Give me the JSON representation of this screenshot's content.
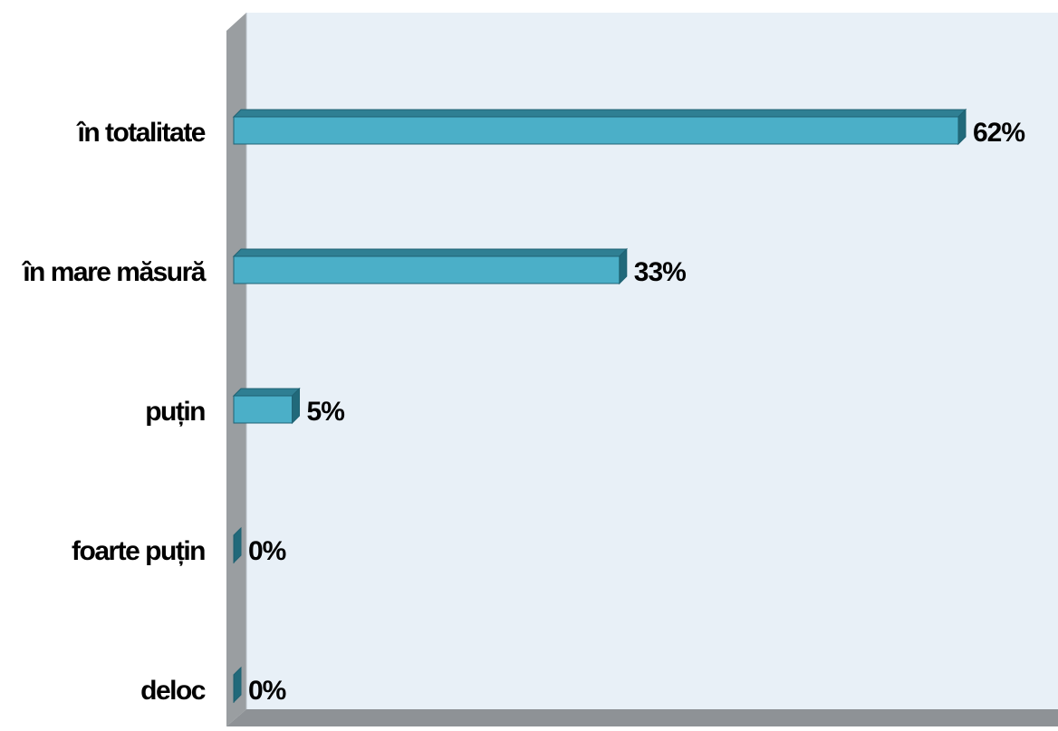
{
  "chart_data": {
    "type": "bar",
    "orientation": "horizontal",
    "style": "3d",
    "categories": [
      "în totalitate",
      "în mare măsură",
      "puțin",
      "foarte puțin",
      "deloc"
    ],
    "values": [
      62,
      33,
      5,
      0,
      0
    ],
    "value_labels": [
      "62%",
      "33%",
      "5%",
      "0%",
      "0%"
    ],
    "value_unit": "%",
    "xlim": [
      0,
      70
    ],
    "grid": false,
    "legend": "none",
    "colors": {
      "bar_front": "#4bafc8",
      "bar_top": "#2f7f93",
      "bar_side": "#21697a",
      "bar_edge": "#1f6273",
      "plot_back_wall": "#e8f0f7",
      "side_wall": "#9a9ea1",
      "floor": "#8e9296",
      "label_text": "#000000"
    }
  }
}
